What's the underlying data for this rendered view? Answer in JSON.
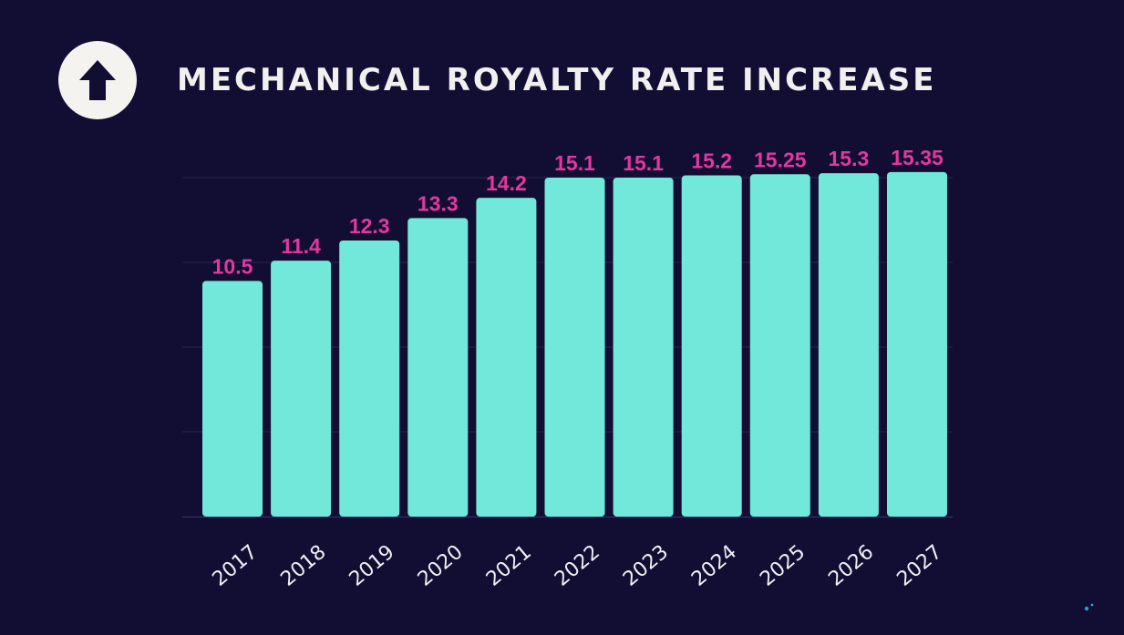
{
  "header": {
    "icon": "arrow-up-icon",
    "title": "MECHANICAL ROYALTY RATE INCREASE"
  },
  "chart_data": {
    "type": "bar",
    "title": "MECHANICAL ROYALTY RATE INCREASE",
    "xlabel": "",
    "ylabel": "",
    "categories": [
      "2017",
      "2018",
      "2019",
      "2020",
      "2021",
      "2022",
      "2023",
      "2024",
      "2025",
      "2026",
      "2027"
    ],
    "values": [
      10.5,
      11.4,
      12.3,
      13.3,
      14.2,
      15.1,
      15.1,
      15.2,
      15.25,
      15.3,
      15.35
    ],
    "value_labels": [
      "10.5",
      "11.4",
      "12.3",
      "13.3",
      "14.2",
      "15.1",
      "15.1",
      "15.2",
      "15.25",
      "15.3",
      "15.35"
    ],
    "ylim": [
      0,
      15.1
    ],
    "grid": true,
    "legend": "none",
    "colors": {
      "background": "#120d33",
      "bar": "#72e8da",
      "value_label": "#e2389f",
      "tick_label": "#f0eef2",
      "grid": "#2a2552"
    }
  }
}
